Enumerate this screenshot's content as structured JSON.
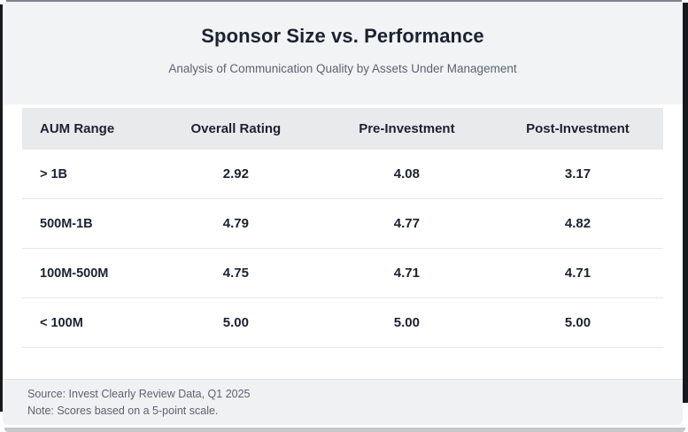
{
  "colors": {
    "positive": "#1e9e4b",
    "warning": "#c08a0e",
    "header_bg": "#f2f3f5",
    "table_header_bg": "#e9eaec",
    "footer_bg": "#f0f1f3",
    "frame": "#17191c",
    "text_dark": "#1b2230",
    "text_muted": "#5b6372",
    "row_border": "#e4e6e9"
  },
  "header": {
    "title": "Sponsor Size vs. Performance",
    "subtitle": "Analysis of Communication Quality by Assets Under Management"
  },
  "table": {
    "columns": [
      "AUM Range",
      "Overall Rating",
      "Pre-Investment",
      "Post-Investment"
    ],
    "rows": [
      {
        "label": "> 1B",
        "values": [
          {
            "text": "2.92",
            "tone": "warning"
          },
          {
            "text": "4.08",
            "tone": "positive"
          },
          {
            "text": "3.17",
            "tone": "warning"
          }
        ]
      },
      {
        "label": "500M-1B",
        "values": [
          {
            "text": "4.79",
            "tone": "positive"
          },
          {
            "text": "4.77",
            "tone": "positive"
          },
          {
            "text": "4.82",
            "tone": "positive"
          }
        ]
      },
      {
        "label": "100M-500M",
        "values": [
          {
            "text": "4.75",
            "tone": "positive"
          },
          {
            "text": "4.71",
            "tone": "positive"
          },
          {
            "text": "4.71",
            "tone": "positive"
          }
        ]
      },
      {
        "label": "< 100M",
        "values": [
          {
            "text": "5.00",
            "tone": "positive"
          },
          {
            "text": "5.00",
            "tone": "positive"
          },
          {
            "text": "5.00",
            "tone": "positive"
          }
        ]
      }
    ]
  },
  "footer": {
    "source": "Source: Invest Clearly Review Data, Q1 2025",
    "note": "Note: Scores based on a 5-point scale."
  },
  "chart_data": {
    "type": "table",
    "title": "Sponsor Size vs. Performance",
    "subtitle": "Analysis of Communication Quality by Assets Under Management",
    "columns": [
      "AUM Range",
      "Overall Rating",
      "Pre-Investment",
      "Post-Investment"
    ],
    "categories": [
      "> 1B",
      "500M-1B",
      "100M-500M",
      "< 100M"
    ],
    "series": [
      {
        "name": "Overall Rating",
        "values": [
          2.92,
          4.79,
          4.75,
          5.0
        ]
      },
      {
        "name": "Pre-Investment",
        "values": [
          4.08,
          4.77,
          4.71,
          5.0
        ]
      },
      {
        "name": "Post-Investment",
        "values": [
          3.17,
          4.82,
          4.71,
          5.0
        ]
      }
    ],
    "scale": [
      0,
      5
    ],
    "source": "Source: Invest Clearly Review Data, Q1 2025",
    "note": "Note: Scores based on a 5-point scale."
  }
}
